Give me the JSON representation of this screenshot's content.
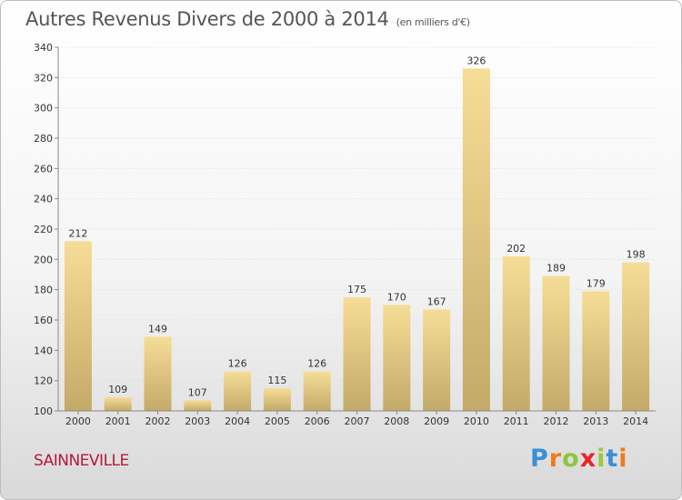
{
  "title": "Autres Revenus Divers de 2000 à 2014",
  "unit": "(en milliers d'€)",
  "city": "SAINNEVILLE",
  "brand": {
    "letters": [
      "P",
      "r",
      "o",
      "x",
      "i",
      "t",
      "i"
    ],
    "colors": [
      "#3a8fd6",
      "#ef7b1a",
      "#8cc63f",
      "#e6262c",
      "#9bc93d",
      "#3a8fd6",
      "#ef7b1a"
    ]
  },
  "colors": {
    "bar_top": "#f6dd97",
    "bar_bottom": "#c3aa68",
    "axis": "#888888",
    "grid": "#dcdcdc"
  },
  "chart_data": {
    "type": "bar",
    "title": "Autres Revenus Divers de 2000 à 2014",
    "subtitle": "(en milliers d'€)",
    "xlabel": "",
    "ylabel": "",
    "ylim": [
      100,
      340
    ],
    "yticks": [
      100,
      120,
      140,
      160,
      180,
      200,
      220,
      240,
      260,
      280,
      300,
      320,
      340
    ],
    "grid": true,
    "legend": "none",
    "categories": [
      "2000",
      "2001",
      "2002",
      "2003",
      "2004",
      "2005",
      "2006",
      "2007",
      "2008",
      "2009",
      "2010",
      "2011",
      "2012",
      "2013",
      "2014"
    ],
    "values": [
      212,
      109,
      149,
      107,
      126,
      115,
      126,
      175,
      170,
      167,
      326,
      202,
      189,
      179,
      198
    ]
  }
}
